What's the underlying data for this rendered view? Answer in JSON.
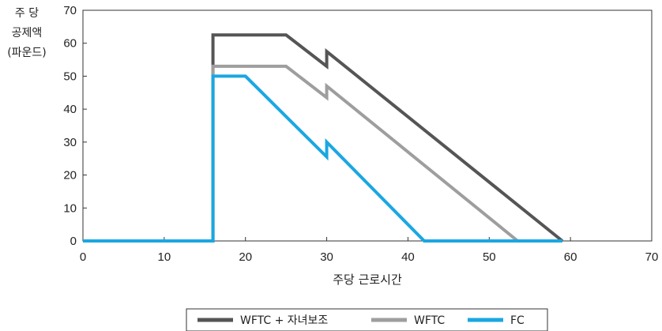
{
  "chart_data": {
    "type": "line",
    "title": "",
    "xlabel": "주당 근로시간",
    "ylabel_lines": [
      "주 당",
      "공제액",
      "(파운드)"
    ],
    "xlim": [
      0,
      70
    ],
    "ylim": [
      0,
      70
    ],
    "xticks": [
      0,
      10,
      20,
      30,
      40,
      50,
      60,
      70
    ],
    "yticks": [
      0,
      10,
      20,
      30,
      40,
      50,
      60,
      70
    ],
    "grid": false,
    "legend_position": "bottom-center",
    "series": [
      {
        "name": "WFTC + 자녀보조",
        "color": "#555555",
        "x": [
          0,
          16,
          16,
          25,
          30,
          30,
          59
        ],
        "y": [
          0,
          0,
          62.5,
          62.5,
          53,
          57.5,
          0
        ]
      },
      {
        "name": "WFTC",
        "color": "#9e9e9e",
        "x": [
          0,
          16,
          16,
          25,
          30,
          30,
          53.5
        ],
        "y": [
          0,
          0,
          53,
          53,
          43.5,
          47,
          0
        ]
      },
      {
        "name": "FC",
        "color": "#1aa7e1",
        "x": [
          0,
          16,
          16,
          20,
          30,
          30,
          42,
          59
        ],
        "y": [
          0,
          0,
          50,
          50,
          25.5,
          30,
          0,
          0
        ]
      }
    ]
  }
}
